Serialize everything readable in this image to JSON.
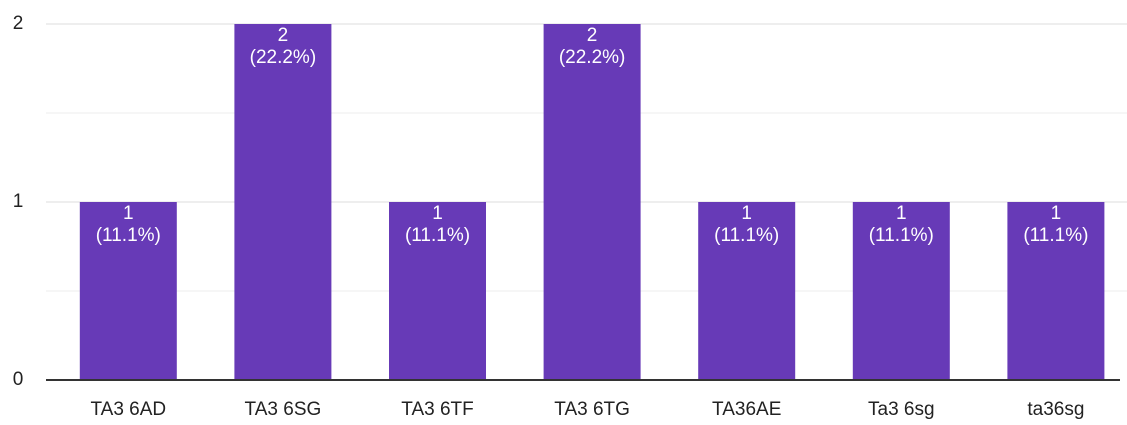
{
  "chart_data": {
    "type": "bar",
    "categories": [
      "TA3 6AD",
      "TA3 6SG",
      "TA3 6TF",
      "TA3 6TG",
      "TA36AE",
      "Ta3 6sg",
      "ta36sg"
    ],
    "values": [
      1,
      2,
      1,
      2,
      1,
      1,
      1
    ],
    "percentage_labels": [
      "(11.1%)",
      "(22.2%)",
      "(11.1%)",
      "(22.2%)",
      "(11.1%)",
      "(11.1%)",
      "(11.1%)"
    ],
    "color": "#673ab7",
    "ylim": [
      0,
      2
    ],
    "yticks": [
      0,
      1,
      2
    ],
    "minor_yticks": [
      0.5,
      1.5
    ],
    "grid": true
  }
}
